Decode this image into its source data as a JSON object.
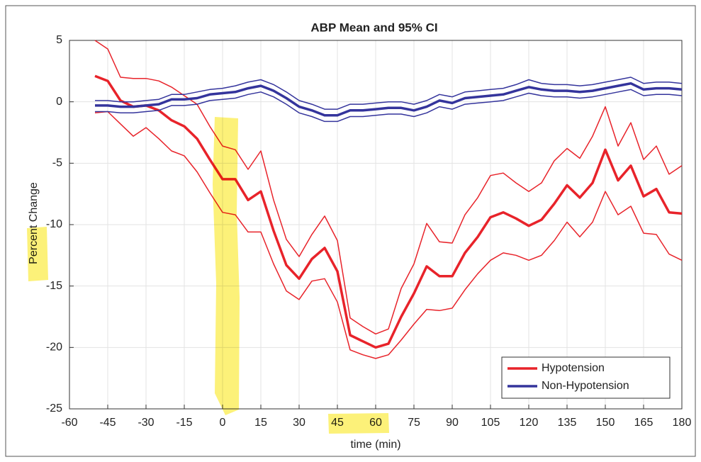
{
  "chart_data": {
    "type": "line",
    "title": "ABP Mean and 95% CI",
    "xlabel": "time (min)",
    "ylabel": "Percent Change",
    "x": [
      -50,
      -45,
      -40,
      -35,
      -30,
      -25,
      -20,
      -15,
      -10,
      -5,
      0,
      5,
      10,
      15,
      20,
      25,
      30,
      35,
      40,
      45,
      50,
      55,
      60,
      65,
      70,
      75,
      80,
      85,
      90,
      95,
      100,
      105,
      110,
      115,
      120,
      125,
      130,
      135,
      140,
      145,
      150,
      155,
      160,
      165,
      170,
      175,
      180
    ],
    "series": [
      {
        "name": "Hypotension",
        "color": "#e8232a",
        "values": [
          2.1,
          1.7,
          0.1,
          -0.4,
          -0.3,
          -0.7,
          -1.5,
          -2.0,
          -3.0,
          -4.7,
          -6.3,
          -6.3,
          -8.0,
          -7.3,
          -10.5,
          -13.3,
          -14.4,
          -12.8,
          -11.9,
          -13.8,
          -19.0,
          -19.5,
          -20.0,
          -19.7,
          -17.5,
          -15.6,
          -13.4,
          -14.2,
          -14.2,
          -12.3,
          -11.0,
          -9.4,
          -9.0,
          -9.5,
          -10.1,
          -9.6,
          -8.3,
          -6.8,
          -7.8,
          -6.6,
          -3.9,
          -6.4,
          -5.2,
          -7.7,
          -7.1,
          -9.0,
          -9.1
        ],
        "upper": [
          5.0,
          4.3,
          2.0,
          1.9,
          1.9,
          1.7,
          1.2,
          0.5,
          -0.2,
          -2.0,
          -3.6,
          -3.9,
          -5.5,
          -4.0,
          -8.0,
          -11.2,
          -12.6,
          -10.8,
          -9.3,
          -11.3,
          -17.6,
          -18.3,
          -18.9,
          -18.5,
          -15.2,
          -13.2,
          -9.9,
          -11.4,
          -11.5,
          -9.2,
          -7.8,
          -6.0,
          -5.8,
          -6.6,
          -7.3,
          -6.6,
          -4.8,
          -3.8,
          -4.6,
          -2.8,
          -0.4,
          -3.6,
          -1.7,
          -4.7,
          -3.6,
          -5.9,
          -5.2
        ],
        "lower": [
          -0.9,
          -0.8,
          -1.8,
          -2.8,
          -2.1,
          -3.0,
          -4.0,
          -4.4,
          -5.7,
          -7.4,
          -9.0,
          -9.2,
          -10.6,
          -10.6,
          -13.2,
          -15.4,
          -16.1,
          -14.6,
          -14.4,
          -16.3,
          -20.2,
          -20.6,
          -20.9,
          -20.6,
          -19.4,
          -18.1,
          -16.9,
          -17.0,
          -16.8,
          -15.3,
          -14.0,
          -12.9,
          -12.3,
          -12.5,
          -12.9,
          -12.5,
          -11.3,
          -9.8,
          -11.0,
          -9.8,
          -7.3,
          -9.2,
          -8.5,
          -10.7,
          -10.8,
          -12.4,
          -12.9
        ]
      },
      {
        "name": "Non-Hypotension",
        "color": "#34349c",
        "values": [
          -0.3,
          -0.3,
          -0.4,
          -0.4,
          -0.3,
          -0.2,
          0.2,
          0.2,
          0.3,
          0.6,
          0.7,
          0.8,
          1.1,
          1.3,
          0.9,
          0.3,
          -0.4,
          -0.7,
          -1.1,
          -1.1,
          -0.7,
          -0.7,
          -0.6,
          -0.5,
          -0.5,
          -0.7,
          -0.4,
          0.1,
          -0.1,
          0.3,
          0.4,
          0.5,
          0.6,
          0.9,
          1.2,
          1.0,
          0.9,
          0.9,
          0.8,
          0.9,
          1.1,
          1.3,
          1.5,
          1.0,
          1.1,
          1.1,
          1.0
        ],
        "upper": [
          0.1,
          0.1,
          0.0,
          0.0,
          0.1,
          0.2,
          0.6,
          0.6,
          0.8,
          1.0,
          1.1,
          1.3,
          1.6,
          1.8,
          1.4,
          0.8,
          0.1,
          -0.2,
          -0.6,
          -0.6,
          -0.2,
          -0.2,
          -0.1,
          0.0,
          0.0,
          -0.2,
          0.1,
          0.6,
          0.4,
          0.8,
          0.9,
          1.0,
          1.1,
          1.4,
          1.8,
          1.5,
          1.4,
          1.4,
          1.3,
          1.4,
          1.6,
          1.8,
          2.0,
          1.5,
          1.6,
          1.6,
          1.5
        ],
        "lower": [
          -0.8,
          -0.8,
          -0.9,
          -0.9,
          -0.8,
          -0.7,
          -0.3,
          -0.3,
          -0.2,
          0.1,
          0.2,
          0.3,
          0.6,
          0.8,
          0.4,
          -0.2,
          -0.9,
          -1.2,
          -1.6,
          -1.6,
          -1.2,
          -1.2,
          -1.1,
          -1.0,
          -1.0,
          -1.2,
          -0.9,
          -0.4,
          -0.6,
          -0.2,
          -0.1,
          0.0,
          0.1,
          0.4,
          0.7,
          0.5,
          0.4,
          0.4,
          0.3,
          0.4,
          0.6,
          0.8,
          1.0,
          0.5,
          0.6,
          0.6,
          0.5
        ]
      }
    ],
    "xlim": [
      -60,
      180
    ],
    "xticks": [
      -60,
      -45,
      -30,
      -15,
      0,
      15,
      30,
      45,
      60,
      75,
      90,
      105,
      120,
      135,
      150,
      165,
      180
    ],
    "ylim": [
      -25,
      5
    ],
    "yticks": [
      5,
      0,
      -5,
      -10,
      -15,
      -20,
      -25
    ],
    "grid": true,
    "legend": "lower right"
  }
}
